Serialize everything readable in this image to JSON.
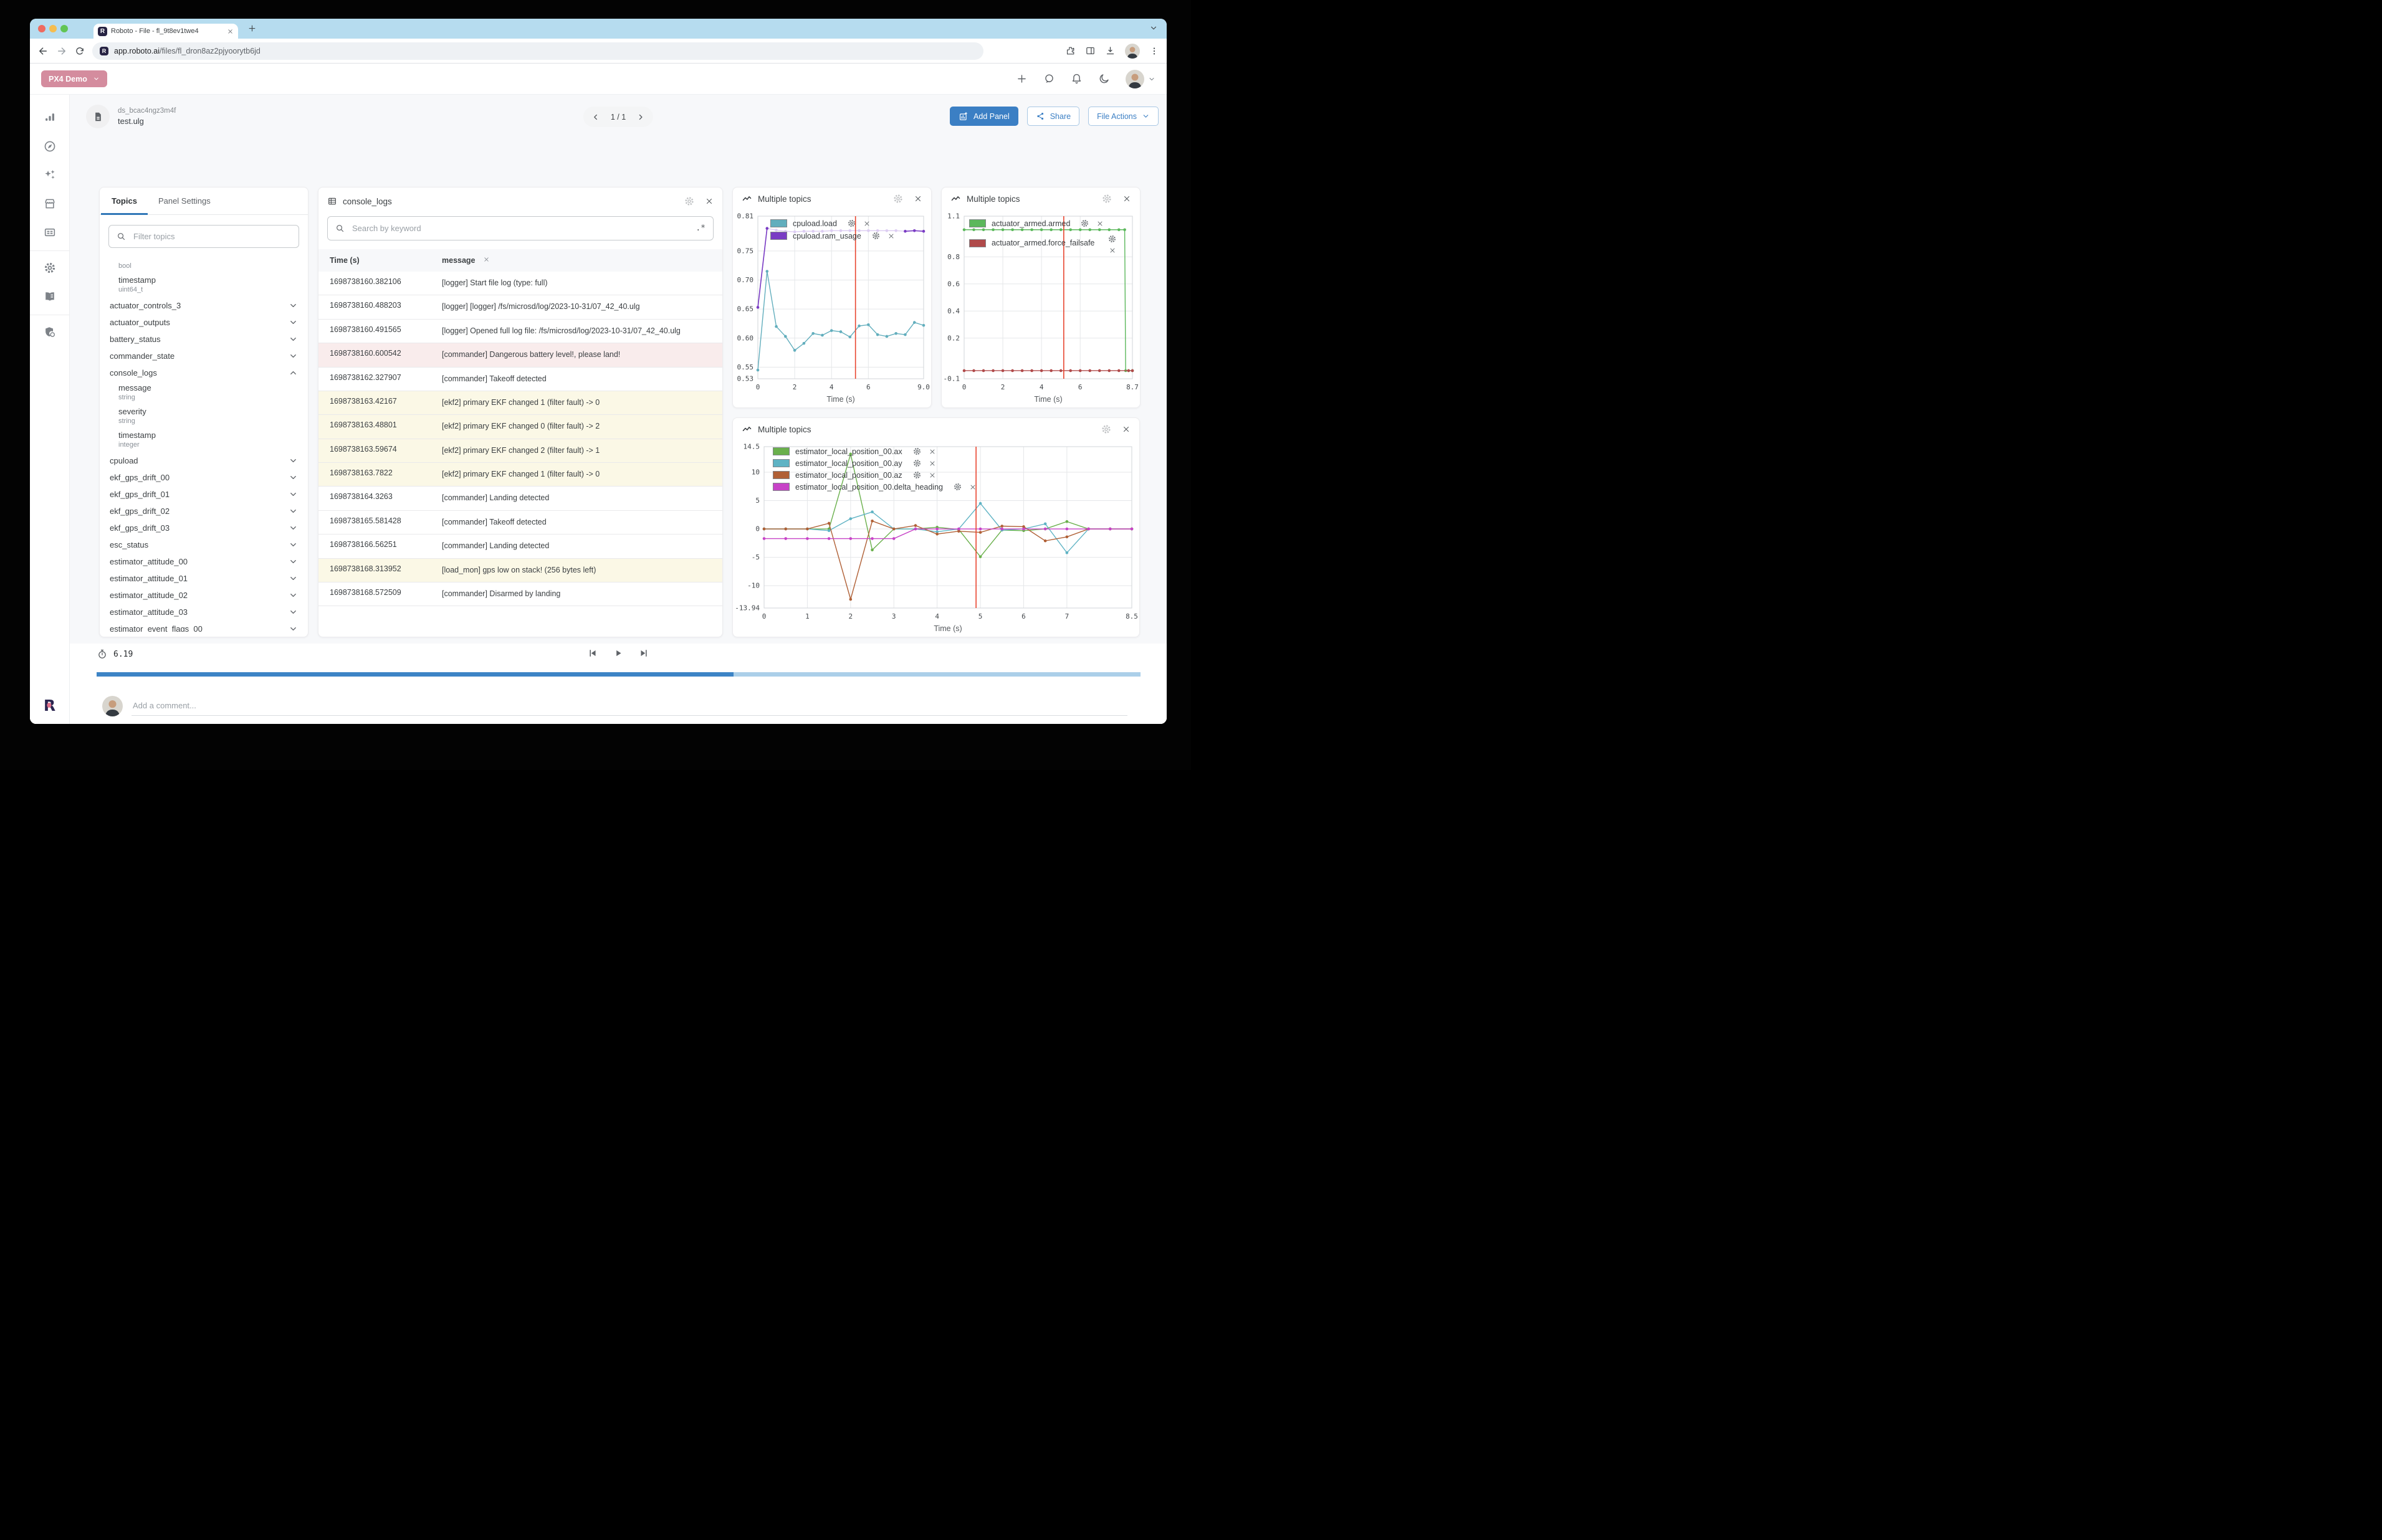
{
  "browser": {
    "tab_title": "Roboto - File - fl_9t8ev1twe4",
    "url_domain": "app.roboto.ai",
    "url_path": "/files/fl_dron8az2pjyoorytb6jd"
  },
  "appbar": {
    "org_label": "PX4 Demo"
  },
  "file_header": {
    "dataset_id": "ds_bcac4ngz3m4f",
    "file_name": "test.ulg",
    "pagination": "1 / 1",
    "add_panel_label": "Add Panel",
    "share_label": "Share",
    "file_actions_label": "File Actions"
  },
  "topics_panel": {
    "tabs": [
      "Topics",
      "Panel Settings"
    ],
    "filter_placeholder": "Filter topics",
    "entries": [
      {
        "kind": "type",
        "text": "bool"
      },
      {
        "kind": "field",
        "name": "timestamp",
        "type": "uint64_t"
      },
      {
        "kind": "topic",
        "name": "actuator_controls_3",
        "state": "collapsed"
      },
      {
        "kind": "topic",
        "name": "actuator_outputs",
        "state": "collapsed"
      },
      {
        "kind": "topic",
        "name": "battery_status",
        "state": "collapsed"
      },
      {
        "kind": "topic",
        "name": "commander_state",
        "state": "collapsed"
      },
      {
        "kind": "topic",
        "name": "console_logs",
        "state": "expanded",
        "children": [
          {
            "name": "message",
            "type": "string"
          },
          {
            "name": "severity",
            "type": "string"
          },
          {
            "name": "timestamp",
            "type": "integer"
          }
        ]
      },
      {
        "kind": "topic",
        "name": "cpuload",
        "state": "collapsed"
      },
      {
        "kind": "topic",
        "name": "ekf_gps_drift_00",
        "state": "collapsed"
      },
      {
        "kind": "topic",
        "name": "ekf_gps_drift_01",
        "state": "collapsed"
      },
      {
        "kind": "topic",
        "name": "ekf_gps_drift_02",
        "state": "collapsed"
      },
      {
        "kind": "topic",
        "name": "ekf_gps_drift_03",
        "state": "collapsed"
      },
      {
        "kind": "topic",
        "name": "esc_status",
        "state": "collapsed"
      },
      {
        "kind": "topic",
        "name": "estimator_attitude_00",
        "state": "collapsed"
      },
      {
        "kind": "topic",
        "name": "estimator_attitude_01",
        "state": "collapsed"
      },
      {
        "kind": "topic",
        "name": "estimator_attitude_02",
        "state": "collapsed"
      },
      {
        "kind": "topic",
        "name": "estimator_attitude_03",
        "state": "collapsed"
      },
      {
        "kind": "topic",
        "name": "estimator_event_flags_00",
        "state": "collapsed"
      }
    ]
  },
  "console_panel": {
    "title": "console_logs",
    "search_placeholder": "Search by keyword",
    "regex_button": ".*",
    "columns": [
      "Time (s)",
      "message"
    ],
    "rows": [
      {
        "time": "1698738160.382106",
        "message": "[logger] Start file log (type: full)",
        "highlight": "none"
      },
      {
        "time": "1698738160.488203",
        "message": "[logger] [logger] /fs/microsd/log/2023-10-31/07_42_40.ulg",
        "highlight": "none"
      },
      {
        "time": "1698738160.491565",
        "message": "[logger] Opened full log file: /fs/microsd/log/2023-10-31/07_42_40.ulg",
        "highlight": "none"
      },
      {
        "time": "1698738160.600542",
        "message": "[commander] Dangerous battery level!, please land!",
        "highlight": "error"
      },
      {
        "time": "1698738162.327907",
        "message": "[commander] Takeoff detected",
        "highlight": "none"
      },
      {
        "time": "1698738163.42167",
        "message": "[ekf2] primary EKF changed 1 (filter fault) -> 0",
        "highlight": "warning"
      },
      {
        "time": "1698738163.48801",
        "message": "[ekf2] primary EKF changed 0 (filter fault) -> 2",
        "highlight": "warning"
      },
      {
        "time": "1698738163.59674",
        "message": "[ekf2] primary EKF changed 2 (filter fault) -> 1",
        "highlight": "warning"
      },
      {
        "time": "1698738163.7822",
        "message": "[ekf2] primary EKF changed 1 (filter fault) -> 0",
        "highlight": "warning"
      },
      {
        "time": "1698738164.3263",
        "message": "[commander] Landing detected",
        "highlight": "none"
      },
      {
        "time": "1698738165.581428",
        "message": "[commander] Takeoff detected",
        "highlight": "none"
      },
      {
        "time": "1698738166.56251",
        "message": "[commander] Landing detected",
        "highlight": "none"
      },
      {
        "time": "1698738168.313952",
        "message": "[load_mon] gps low on stack! (256 bytes left)",
        "highlight": "warning"
      },
      {
        "time": "1698738168.572509",
        "message": "[commander] Disarmed by landing",
        "highlight": "none"
      }
    ]
  },
  "chart_data": [
    {
      "type": "line",
      "title": "Multiple topics",
      "xlabel": "Time (s)",
      "xlim": [
        0,
        9
      ],
      "ylim": [
        0.53,
        0.81
      ],
      "margin_left": 40,
      "cursor_x": 5.3,
      "xticks": [
        {
          "v": 0,
          "l": "0"
        },
        {
          "v": 2,
          "l": "2"
        },
        {
          "v": 4,
          "l": "4"
        },
        {
          "v": 6,
          "l": "6"
        },
        {
          "v": 9,
          "l": "9.0"
        }
      ],
      "yticks": [
        {
          "v": 0.81,
          "l": "0.81"
        },
        {
          "v": 0.75,
          "l": "0.75"
        },
        {
          "v": 0.7,
          "l": "0.70"
        },
        {
          "v": 0.65,
          "l": "0.65"
        },
        {
          "v": 0.6,
          "l": "0.60"
        },
        {
          "v": 0.55,
          "l": "0.55"
        },
        {
          "v": 0.53,
          "l": "0.53"
        }
      ],
      "x": [
        0,
        0.5,
        1,
        1.5,
        2,
        2.5,
        3,
        3.5,
        4,
        4.5,
        5,
        5.5,
        6,
        6.5,
        7,
        7.5,
        8,
        8.5,
        9
      ],
      "series": [
        {
          "name": "cpuload.load",
          "color": "#62aebd",
          "values": [
            0.545,
            0.715,
            0.62,
            0.603,
            0.579,
            0.591,
            0.608,
            0.605,
            0.613,
            0.611,
            0.602,
            0.621,
            0.623,
            0.606,
            0.603,
            0.608,
            0.606,
            0.627,
            0.622
          ]
        },
        {
          "name": "cpuload.ram_usage",
          "color": "#7a3cc4",
          "fade_color": "#ddcdf2",
          "emphasis": [
            [
              0,
              1
            ],
            [
              16,
              18
            ]
          ],
          "values": [
            0.653,
            0.789,
            0.786,
            0.784,
            0.783,
            0.784,
            0.784,
            0.784,
            0.785,
            0.785,
            0.785,
            0.785,
            0.785,
            0.785,
            0.785,
            0.785,
            0.784,
            0.785,
            0.784
          ]
        }
      ]
    },
    {
      "type": "line",
      "title": "Multiple topics",
      "xlabel": "Time (s)",
      "xlim": [
        0,
        8.7
      ],
      "ylim": [
        -0.1,
        1.1
      ],
      "margin_left": 36,
      "cursor_x": 5.15,
      "xticks": [
        {
          "v": 0,
          "l": "0"
        },
        {
          "v": 2,
          "l": "2"
        },
        {
          "v": 4,
          "l": "4"
        },
        {
          "v": 6,
          "l": "6"
        },
        {
          "v": 8.7,
          "l": "8.7"
        }
      ],
      "yticks": [
        {
          "v": 1.1,
          "l": "1.1"
        },
        {
          "v": 0.8,
          "l": "0.8"
        },
        {
          "v": 0.6,
          "l": "0.6"
        },
        {
          "v": 0.4,
          "l": "0.4"
        },
        {
          "v": 0.2,
          "l": "0.2"
        },
        {
          "v": -0.1,
          "l": "-0.1"
        }
      ],
      "series": [
        {
          "name": "actuator_armed.armed",
          "color": "#5cb85c",
          "x": [
            0,
            0.5,
            1,
            1.5,
            2,
            2.5,
            3,
            3.5,
            4,
            4.5,
            5,
            5.5,
            6,
            6.5,
            7,
            7.5,
            8,
            8.3,
            8.35,
            8.5,
            8.7
          ],
          "values": [
            1,
            1,
            1,
            1,
            1,
            1,
            1,
            1,
            1,
            1,
            1,
            1,
            1,
            1,
            1,
            1,
            1,
            1,
            -0.04,
            -0.04,
            -0.04
          ]
        },
        {
          "name": "actuator_armed.force_failsafe",
          "color": "#b04a4a",
          "stacked_icons": true,
          "x": [
            0,
            0.5,
            1,
            1.5,
            2,
            2.5,
            3,
            3.5,
            4,
            4.5,
            5,
            5.5,
            6,
            6.5,
            7,
            7.5,
            8,
            8.5,
            8.7
          ],
          "values": [
            -0.04,
            -0.04,
            -0.04,
            -0.04,
            -0.04,
            -0.04,
            -0.04,
            -0.04,
            -0.04,
            -0.04,
            -0.04,
            -0.04,
            -0.04,
            -0.04,
            -0.04,
            -0.04,
            -0.04,
            -0.04,
            -0.04
          ]
        }
      ]
    },
    {
      "type": "line",
      "title": "Multiple topics",
      "xlabel": "Time (s)",
      "xlim": [
        0,
        8.5
      ],
      "ylim": [
        -13.94,
        14.5
      ],
      "margin_left": 50,
      "cursor_x": 4.9,
      "xticks": [
        {
          "v": 0,
          "l": "0"
        },
        {
          "v": 1,
          "l": "1"
        },
        {
          "v": 2,
          "l": "2"
        },
        {
          "v": 3,
          "l": "3"
        },
        {
          "v": 4,
          "l": "4"
        },
        {
          "v": 5,
          "l": "5"
        },
        {
          "v": 6,
          "l": "6"
        },
        {
          "v": 7,
          "l": "7"
        },
        {
          "v": 8.5,
          "l": "8.5"
        }
      ],
      "yticks": [
        {
          "v": 14.5,
          "l": "14.5"
        },
        {
          "v": 10,
          "l": "10"
        },
        {
          "v": 5,
          "l": "5"
        },
        {
          "v": 0,
          "l": "0"
        },
        {
          "v": -5,
          "l": "-5"
        },
        {
          "v": -10,
          "l": "-10"
        },
        {
          "v": -13.94,
          "l": "-13.94"
        }
      ],
      "x": [
        0,
        0.5,
        1,
        1.5,
        2,
        2.5,
        3,
        3.5,
        4,
        4.5,
        5,
        5.5,
        6,
        6.5,
        7,
        7.5,
        8,
        8.5
      ],
      "series": [
        {
          "name": "estimator_local_position_00.ax",
          "color": "#6ab04c",
          "values": [
            0,
            0,
            0,
            0,
            13.2,
            -3.7,
            0,
            0,
            0.3,
            -0.1,
            -4.9,
            -0.2,
            -0.3,
            0,
            1.3,
            0,
            0,
            0
          ]
        },
        {
          "name": "estimator_local_position_00.ay",
          "color": "#5fb3c4",
          "values": [
            0,
            0,
            0,
            -0.3,
            1.8,
            3.0,
            0,
            0,
            -0.5,
            0,
            4.5,
            -0.2,
            0,
            0.9,
            -4.2,
            0,
            0,
            0
          ]
        },
        {
          "name": "estimator_local_position_00.az",
          "color": "#b06036",
          "values": [
            0,
            0,
            0,
            1.0,
            -12.4,
            1.4,
            0,
            0.6,
            -0.9,
            -0.4,
            -0.6,
            0.5,
            0.4,
            -2.1,
            -1.4,
            0,
            0,
            0
          ]
        },
        {
          "name": "estimator_local_position_00.delta_heading",
          "color": "#c743c7",
          "values": [
            -1.7,
            -1.7,
            -1.7,
            -1.7,
            -1.7,
            -1.7,
            -1.7,
            0,
            0,
            0,
            0,
            0,
            0,
            0,
            0,
            0,
            0,
            0
          ]
        }
      ]
    }
  ],
  "timeline": {
    "time_label": "6.19",
    "progress_fraction": 0.61
  },
  "comment": {
    "placeholder": "Add a comment..."
  },
  "colors": {
    "accent_blue": "#3b7fc4",
    "org_pink": "#d48c9e",
    "progress_blue": "#3d84c6",
    "progress_track": "#abcfe9",
    "cursor_red": "#e8442e",
    "warning_row": "#fbf8e6",
    "error_row": "#f9ecec"
  }
}
